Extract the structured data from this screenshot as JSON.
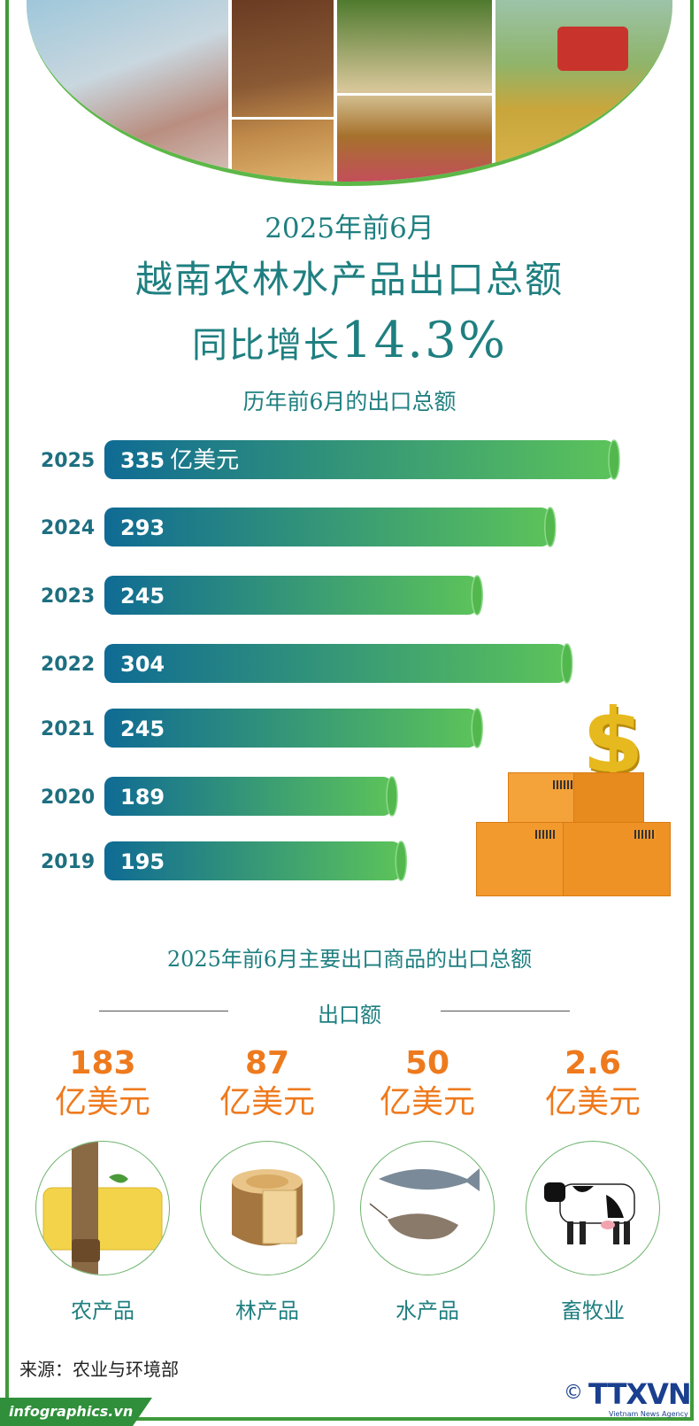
{
  "header": {
    "line1": "2025年前6月",
    "line2": "越南农林水产品出口总额",
    "line3_prefix": "同比增长",
    "line3_value": "14.3%"
  },
  "chart_data": {
    "type": "bar",
    "orientation": "horizontal",
    "title": "历年前6月的出口总额",
    "unit": "亿美元",
    "categories": [
      "2025",
      "2024",
      "2023",
      "2022",
      "2021",
      "2020",
      "2019"
    ],
    "values": [
      335,
      293,
      245,
      304,
      245,
      189,
      195
    ],
    "colors": {
      "start": "#0f6b94",
      "end": "#5cc35a",
      "cap": "#52b84e"
    }
  },
  "section": {
    "title": "2025年前6月主要出口商品的出口总额",
    "subtitle": "出口额"
  },
  "products": [
    {
      "value": "183",
      "unit": "亿美元",
      "name": "农产品",
      "icon": "rubber-icon"
    },
    {
      "value": "87",
      "unit": "亿美元",
      "name": "林产品",
      "icon": "wood-icon"
    },
    {
      "value": "50",
      "unit": "亿美元",
      "name": "水产品",
      "icon": "fish-shrimp-icon"
    },
    {
      "value": "2.6",
      "unit": "亿美元",
      "name": "畜牧业",
      "icon": "cow-icon"
    }
  ],
  "footer": {
    "source": "来源：农业与环境部",
    "site": "infographics.vn",
    "copyright": "©",
    "logo": "TTXVN",
    "logo_sub": "Vietnam News Agency"
  }
}
